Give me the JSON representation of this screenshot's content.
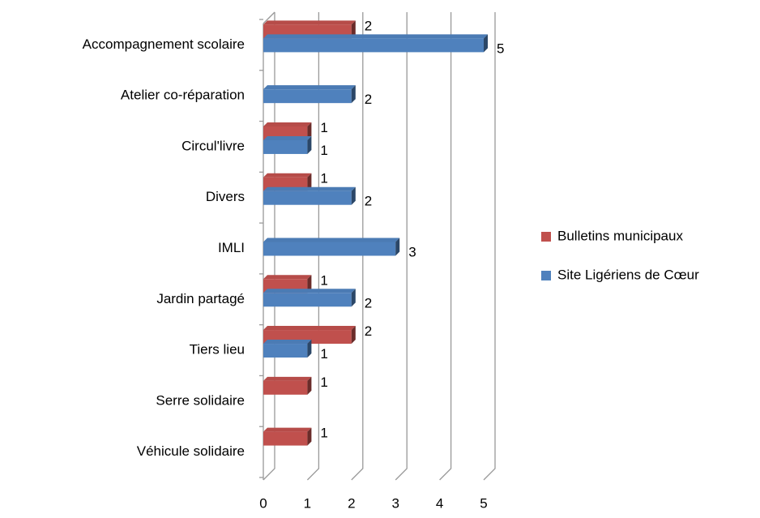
{
  "chart_data": {
    "type": "bar",
    "orientation": "horizontal",
    "three_d": true,
    "categories": [
      "Accompagnement scolaire",
      "Atelier co-réparation",
      "Circul'livre",
      "Divers",
      "IMLI",
      "Jardin partagé",
      "Tiers lieu",
      "Serre solidaire",
      "Véhicule solidaire"
    ],
    "series": [
      {
        "name": "Bulletins municipaux",
        "color": "#c0504d",
        "values": [
          2,
          null,
          1,
          1,
          null,
          1,
          2,
          1,
          1
        ]
      },
      {
        "name": "Site Ligériens de Cœur",
        "color": "#4f81bd",
        "values": [
          5,
          2,
          1,
          2,
          3,
          2,
          1,
          null,
          null
        ]
      }
    ],
    "xlim": [
      0,
      5
    ],
    "xticks": [
      0,
      1,
      2,
      3,
      4,
      5
    ],
    "grid": true,
    "legend": "right"
  }
}
